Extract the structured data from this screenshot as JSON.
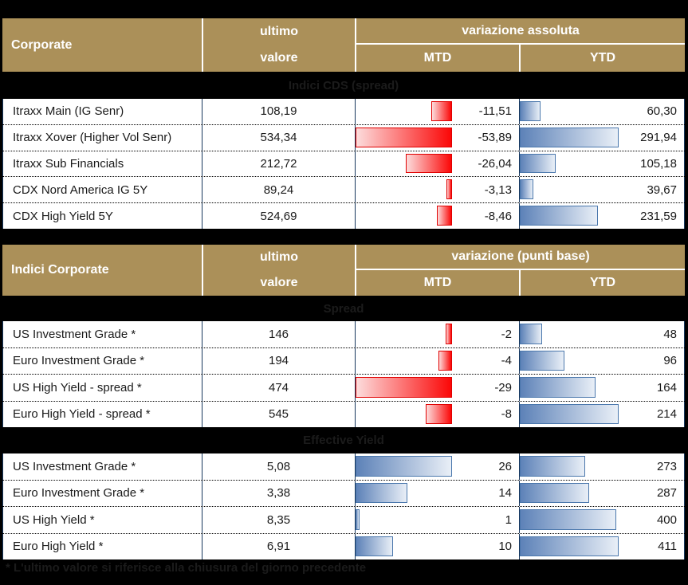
{
  "colors": {
    "background": "#000000",
    "header_bg": "#ab9059",
    "header_text": "#ffffff",
    "border_navy": "#17375d",
    "row_text": "#1a1a1a",
    "band_text": "#1b1b1b",
    "negative_bar": {
      "border": "#e00000",
      "gradient_from": "#fcdcdc",
      "gradient_to": "#fb0707"
    },
    "positive_bar": {
      "border": "#4a77ac",
      "gradient_from": "#5d82b8",
      "gradient_to": "#e9eff7"
    }
  },
  "tables": [
    {
      "header": {
        "title": "Corporate",
        "value_col_line1": "ultimo",
        "value_col_line2": "valore",
        "variation_label": "variazione assoluta",
        "mtd_label": "MTD",
        "ytd_label": "YTD"
      },
      "sections": [
        {
          "band": "Indici CDS (spread)",
          "rows": [
            {
              "label": "Itraxx Main (IG Senr)",
              "value": "108,19",
              "mtd": -11.51,
              "mtd_text": "-11,51",
              "ytd": 60.3,
              "ytd_text": "60,30"
            },
            {
              "label": "Itraxx Xover (Higher Vol Senr)",
              "value": "534,34",
              "mtd": -53.89,
              "mtd_text": "-53,89",
              "ytd": 291.94,
              "ytd_text": "291,94"
            },
            {
              "label": "Itraxx Sub Financials",
              "value": "212,72",
              "mtd": -26.04,
              "mtd_text": "-26,04",
              "ytd": 105.18,
              "ytd_text": "105,18"
            },
            {
              "label": "CDX Nord America IG 5Y",
              "value": "89,24",
              "mtd": -3.13,
              "mtd_text": "-3,13",
              "ytd": 39.67,
              "ytd_text": "39,67"
            },
            {
              "label": "CDX High Yield 5Y",
              "value": "524,69",
              "mtd": -8.46,
              "mtd_text": "-8,46",
              "ytd": 231.59,
              "ytd_text": "231,59"
            }
          ]
        }
      ]
    },
    {
      "header": {
        "title": "Indici Corporate",
        "value_col_line1": "ultimo",
        "value_col_line2": "valore",
        "variation_label": "variazione (punti base)",
        "mtd_label": "MTD",
        "ytd_label": "YTD"
      },
      "sections": [
        {
          "band": "Spread",
          "rows": [
            {
              "label": "US Investment Grade *",
              "value": "146",
              "mtd": -2,
              "mtd_text": "-2",
              "ytd": 48,
              "ytd_text": "48"
            },
            {
              "label": "Euro Investment Grade *",
              "value": "194",
              "mtd": -4,
              "mtd_text": "-4",
              "ytd": 96,
              "ytd_text": "96"
            },
            {
              "label": "US High Yield  - spread *",
              "value": "474",
              "mtd": -29,
              "mtd_text": "-29",
              "ytd": 164,
              "ytd_text": "164"
            },
            {
              "label": "Euro High Yield  - spread *",
              "value": "545",
              "mtd": -8,
              "mtd_text": "-8",
              "ytd": 214,
              "ytd_text": "214"
            }
          ]
        },
        {
          "band": "Effective Yield",
          "rows": [
            {
              "label": "US Investment Grade *",
              "value": "5,08",
              "mtd": 26,
              "mtd_text": "26",
              "ytd": 273,
              "ytd_text": "273"
            },
            {
              "label": "Euro Investment Grade *",
              "value": "3,38",
              "mtd": 14,
              "mtd_text": "14",
              "ytd": 287,
              "ytd_text": "287"
            },
            {
              "label": "US High Yield *",
              "value": "8,35",
              "mtd": 1,
              "mtd_text": "1",
              "ytd": 400,
              "ytd_text": "400"
            },
            {
              "label": "Euro High Yield *",
              "value": "6,91",
              "mtd": 10,
              "mtd_text": "10",
              "ytd": 411,
              "ytd_text": "411"
            }
          ]
        }
      ]
    }
  ],
  "footnote": "* L'ultimo valore si riferisce alla chiusura del giorno precedente"
}
